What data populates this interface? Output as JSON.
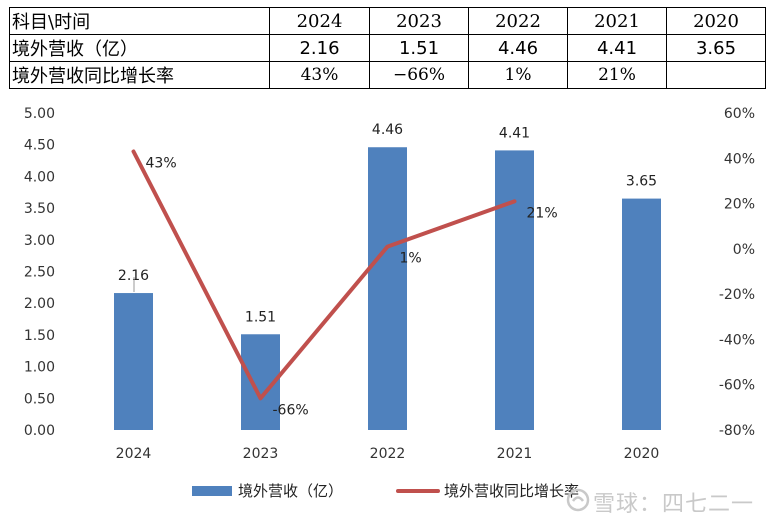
{
  "table": {
    "header_label": "科目\\时间",
    "years": [
      "2024",
      "2023",
      "2022",
      "2021",
      "2020"
    ],
    "rows": [
      {
        "label": "境外营收（亿）",
        "values": [
          "2.16",
          "1.51",
          "4.46",
          "4.41",
          "3.65"
        ]
      },
      {
        "label": "境外营收同比增长率",
        "values": [
          "43%",
          "−66%",
          "1%",
          "21%",
          ""
        ]
      }
    ]
  },
  "chart_data": {
    "type": "bar+line",
    "categories": [
      "2024",
      "2023",
      "2022",
      "2021",
      "2020"
    ],
    "series": [
      {
        "name": "境外营收（亿）",
        "type": "bar",
        "axis": "left",
        "color": "#4f81bd",
        "values": [
          2.16,
          1.51,
          4.46,
          4.41,
          3.65
        ],
        "labels": [
          "2.16",
          "1.51",
          "4.46",
          "4.41",
          "3.65"
        ]
      },
      {
        "name": "境外营收同比增长率",
        "type": "line",
        "axis": "right",
        "color": "#c0504d",
        "values": [
          43,
          -66,
          1,
          21,
          null
        ],
        "labels": [
          "43%",
          "-66%",
          "1%",
          "21%",
          ""
        ]
      }
    ],
    "y_left": {
      "min": 0,
      "max": 5,
      "step": 0.5,
      "ticks": [
        "0.00",
        "0.50",
        "1.00",
        "1.50",
        "2.00",
        "2.50",
        "3.00",
        "3.50",
        "4.00",
        "4.50",
        "5.00"
      ]
    },
    "y_right": {
      "min": -80,
      "max": 60,
      "step": 20,
      "ticks": [
        "-80%",
        "-60%",
        "-40%",
        "-20%",
        "0%",
        "20%",
        "40%",
        "60%"
      ]
    },
    "grid": false,
    "legend_position": "bottom"
  },
  "watermark": {
    "text": "雪球：四七二一"
  }
}
